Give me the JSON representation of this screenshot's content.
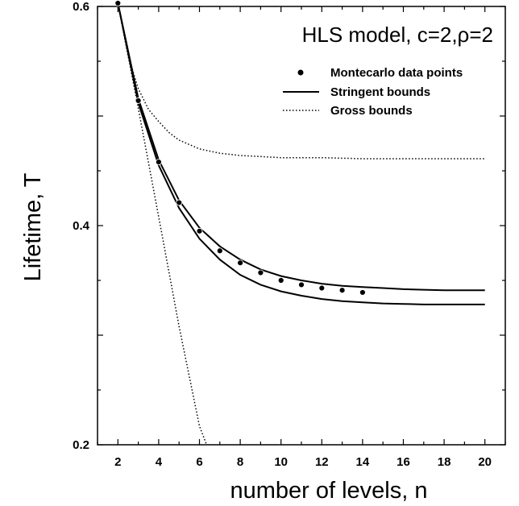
{
  "chart_data": {
    "type": "line",
    "title": "HLS model, c=2,ρ=2",
    "xlabel": "number of levels, n",
    "ylabel": "Lifetime, T",
    "xlim": [
      1,
      21
    ],
    "ylim": [
      0.2,
      0.6
    ],
    "x_ticks": [
      2,
      4,
      6,
      8,
      10,
      12,
      14,
      16,
      18,
      20
    ],
    "y_ticks": [
      0.2,
      0.4,
      0.6
    ],
    "y_tick_labels": [
      "0.2",
      "0.4",
      "0.6"
    ],
    "grid": false,
    "legend": {
      "position": "top-right",
      "entries": [
        {
          "label": "Montecarlo data points",
          "style": "dots"
        },
        {
          "label": "Stringent  bounds",
          "style": "solid"
        },
        {
          "label": "Gross bounds",
          "style": "dotted"
        }
      ]
    },
    "series": [
      {
        "name": "Montecarlo data points",
        "kind": "scatter",
        "x": [
          2,
          3,
          4,
          5,
          6,
          7,
          8,
          9,
          10,
          11,
          12,
          13,
          14
        ],
        "y": [
          0.603,
          0.514,
          0.458,
          0.421,
          0.395,
          0.377,
          0.366,
          0.357,
          0.35,
          0.346,
          0.343,
          0.341,
          0.339
        ]
      },
      {
        "name": "Stringent  bounds",
        "kind": "line",
        "style": "solid",
        "x": [
          2,
          3,
          4,
          5,
          6,
          7,
          8,
          9,
          10,
          11,
          12,
          13,
          14,
          15,
          16,
          17,
          18,
          19,
          20
        ],
        "y": [
          0.603,
          0.516,
          0.46,
          0.423,
          0.398,
          0.381,
          0.369,
          0.36,
          0.354,
          0.35,
          0.347,
          0.345,
          0.344,
          0.343,
          0.342,
          0.3415,
          0.341,
          0.341,
          0.341
        ]
      },
      {
        "name": "Stringent  bounds",
        "kind": "line",
        "style": "solid",
        "x": [
          2,
          3,
          4,
          5,
          6,
          7,
          8,
          9,
          10,
          11,
          12,
          13,
          14,
          15,
          16,
          17,
          18,
          19,
          20
        ],
        "y": [
          0.603,
          0.512,
          0.455,
          0.416,
          0.388,
          0.369,
          0.355,
          0.346,
          0.34,
          0.336,
          0.333,
          0.331,
          0.33,
          0.329,
          0.3285,
          0.328,
          0.328,
          0.328,
          0.328
        ]
      },
      {
        "name": "Gross bounds",
        "kind": "line",
        "style": "dotted",
        "x": [
          2,
          2.5,
          3,
          3.5,
          4,
          4.5,
          5,
          6,
          7,
          8,
          9,
          10,
          12,
          14,
          16,
          18,
          20
        ],
        "y": [
          0.603,
          0.555,
          0.525,
          0.506,
          0.495,
          0.485,
          0.478,
          0.47,
          0.466,
          0.464,
          0.463,
          0.462,
          0.462,
          0.461,
          0.461,
          0.461,
          0.461
        ]
      },
      {
        "name": "Gross bounds",
        "kind": "line",
        "style": "dotted",
        "x": [
          2,
          3,
          4,
          5,
          6,
          6.35
        ],
        "y": [
          0.603,
          0.507,
          0.408,
          0.308,
          0.217,
          0.2
        ]
      }
    ]
  }
}
